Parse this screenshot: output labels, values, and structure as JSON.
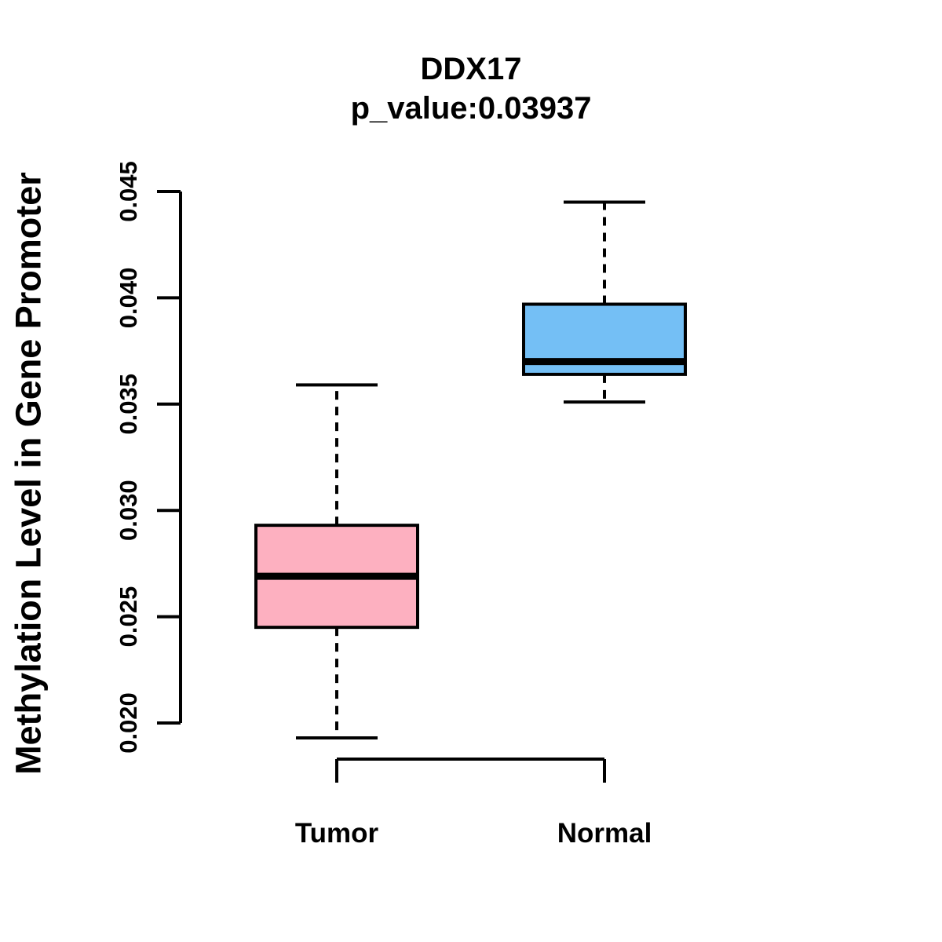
{
  "chart": {
    "title": "DDX17",
    "subtitle": "p_value:0.03937",
    "p_value": "0.03937",
    "ylabel": "Methylation Level in Gene Promoter"
  },
  "chart_data": {
    "type": "boxplot",
    "title": "DDX17",
    "subtitle": "p_value:0.03937",
    "xlabel": "",
    "ylabel": "Methylation Level in Gene Promoter",
    "categories": [
      "Tumor",
      "Normal"
    ],
    "ytick_values": [
      0.02,
      0.025,
      0.03,
      0.035,
      0.04,
      0.045
    ],
    "ytick_labels": [
      "0.020",
      "0.025",
      "0.030",
      "0.035",
      "0.040",
      "0.045"
    ],
    "ylim": [
      0.019,
      0.046
    ],
    "grid": false,
    "legend_position": "none",
    "stroke_color": "#000000",
    "series": [
      {
        "name": "Tumor",
        "box_color": "#FDB0C0",
        "whisker_low": 0.0193,
        "q1": 0.0245,
        "median": 0.0269,
        "q3": 0.0293,
        "whisker_high": 0.0359
      },
      {
        "name": "Normal",
        "box_color": "#74BFF5",
        "whisker_low": 0.0351,
        "q1": 0.0364,
        "median": 0.037,
        "q3": 0.0397,
        "whisker_high": 0.0445
      }
    ]
  }
}
